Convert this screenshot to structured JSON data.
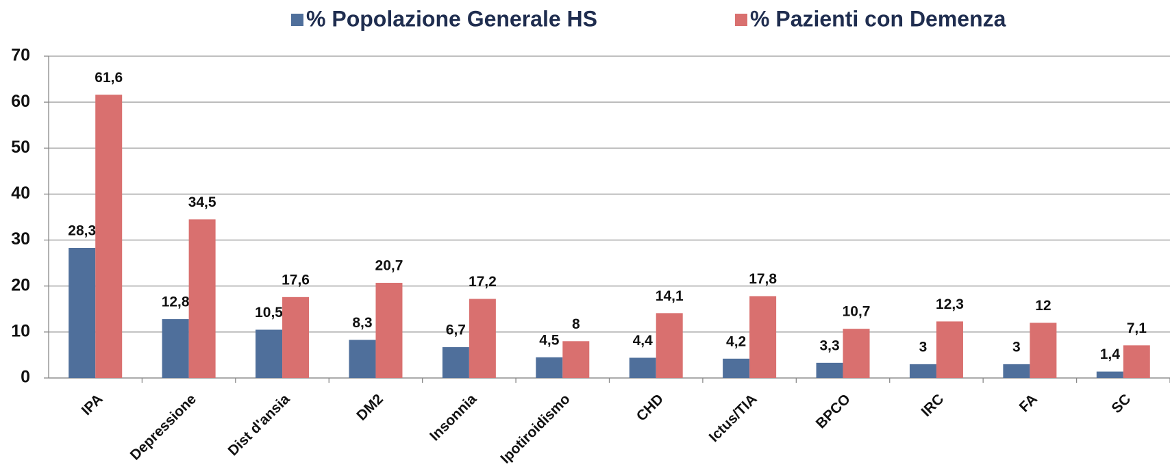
{
  "chart_data": {
    "type": "bar",
    "categories": [
      "IPA",
      "Depressione",
      "Dist d'ansia",
      "DM2",
      "Insonnia",
      "Ipotiroidismo",
      "CHD",
      "Ictus/TIA",
      "BPCO",
      "IRC",
      "FA",
      "SC"
    ],
    "series": [
      {
        "name": "% Popolazione Generale HS",
        "color": "#4f6f9b",
        "values": [
          28.3,
          12.8,
          10.5,
          8.3,
          6.7,
          4.5,
          4.4,
          4.2,
          3.3,
          3,
          3,
          1.4
        ],
        "value_labels": [
          "28,3",
          "12,8",
          "10,5",
          "8,3",
          "6,7",
          "4,5",
          "4,4",
          "4,2",
          "3,3",
          "3",
          "3",
          "1,4"
        ]
      },
      {
        "name": "% Pazienti con Demenza",
        "color": "#d9706f",
        "values": [
          61.6,
          34.5,
          17.6,
          20.7,
          17.2,
          8,
          14.1,
          17.8,
          10.7,
          12.3,
          12,
          7.1
        ],
        "value_labels": [
          "61,6",
          "34,5",
          "17,6",
          "20,7",
          "17,2",
          "8",
          "14,1",
          "17,8",
          "10,7",
          "12,3",
          "12",
          "7,1"
        ]
      }
    ],
    "ylim": [
      0,
      70
    ],
    "yticks": [
      0,
      10,
      20,
      30,
      40,
      50,
      60,
      70
    ],
    "grid": true,
    "legend": "top"
  }
}
